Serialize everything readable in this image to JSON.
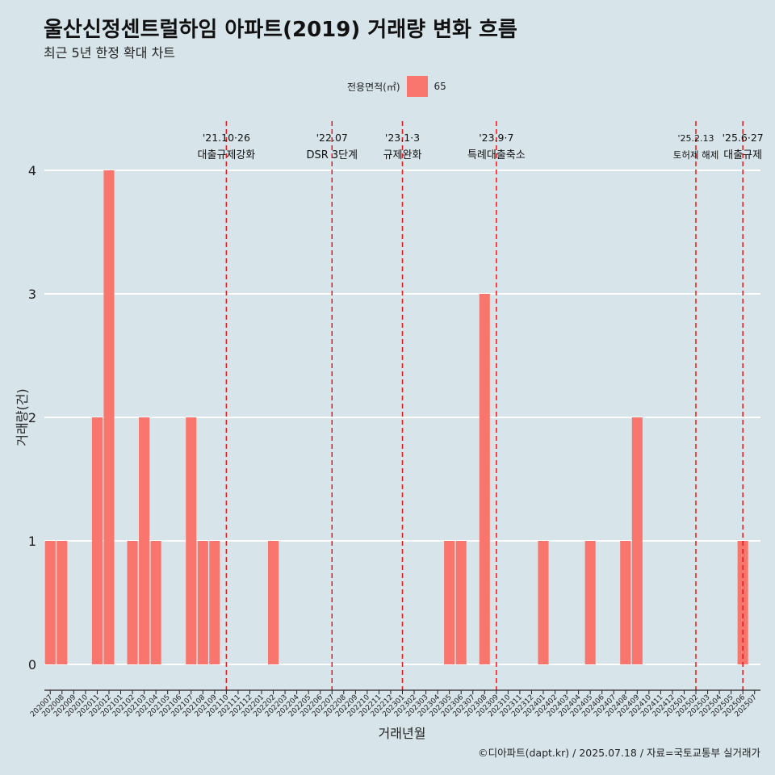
{
  "header": {
    "title": "울산신정센트럴하임 아파트(2019) 거래량 변화 흐름",
    "subtitle": "최근 5년 한정 확대 차트"
  },
  "legend": {
    "title": "전용면적(㎡)",
    "label": "65",
    "color": "#f8766d"
  },
  "caption": "©디아파트(dapt.kr) / 2025.07.18 / 자료=국토교통부 실거래가",
  "chart_data": {
    "type": "bar",
    "xlabel": "거래년월",
    "ylabel": "거래량(건)",
    "ylim": [
      0,
      4
    ],
    "yticks": [
      0,
      1,
      2,
      3,
      4
    ],
    "grid": true,
    "legend_position": "top",
    "bar_color": "#f8766d",
    "categories": [
      "202007",
      "202008",
      "202009",
      "202010",
      "202011",
      "202012",
      "202101",
      "202102",
      "202103",
      "202104",
      "202105",
      "202106",
      "202107",
      "202108",
      "202109",
      "202110",
      "202111",
      "202112",
      "202201",
      "202202",
      "202203",
      "202204",
      "202205",
      "202206",
      "202207",
      "202208",
      "202209",
      "202210",
      "202211",
      "202212",
      "202301",
      "202302",
      "202303",
      "202304",
      "202305",
      "202306",
      "202307",
      "202308",
      "202309",
      "202310",
      "202311",
      "202312",
      "202401",
      "202402",
      "202403",
      "202404",
      "202405",
      "202406",
      "202407",
      "202408",
      "202409",
      "202410",
      "202411",
      "202412",
      "202501",
      "202502",
      "202503",
      "202504",
      "202505",
      "202506",
      "202507"
    ],
    "series": [
      {
        "name": "65",
        "values": [
          1,
          1,
          0,
          0,
          2,
          4,
          0,
          1,
          2,
          1,
          0,
          0,
          2,
          1,
          1,
          0,
          0,
          0,
          0,
          1,
          0,
          0,
          0,
          0,
          0,
          0,
          0,
          0,
          0,
          0,
          0,
          0,
          0,
          0,
          1,
          1,
          0,
          3,
          0,
          0,
          0,
          0,
          1,
          0,
          0,
          0,
          1,
          0,
          0,
          1,
          2,
          0,
          0,
          0,
          0,
          0,
          0,
          0,
          0,
          1,
          0
        ]
      }
    ],
    "annotations": [
      {
        "category": "202110",
        "date": "'21.10·26",
        "text": "대출규제강화"
      },
      {
        "category": "202207",
        "date": "'22.07",
        "text": "DSR 3단계"
      },
      {
        "category": "202301",
        "date": "'23.1·3",
        "text": "규제완화"
      },
      {
        "category": "202309",
        "date": "'23.9·7",
        "text": "특례대출축소"
      },
      {
        "category": "202502",
        "date": "'25.2.13",
        "text": "토허제 해제"
      },
      {
        "category": "202506",
        "date": "'25.6·27",
        "text": "대출규제"
      }
    ]
  }
}
